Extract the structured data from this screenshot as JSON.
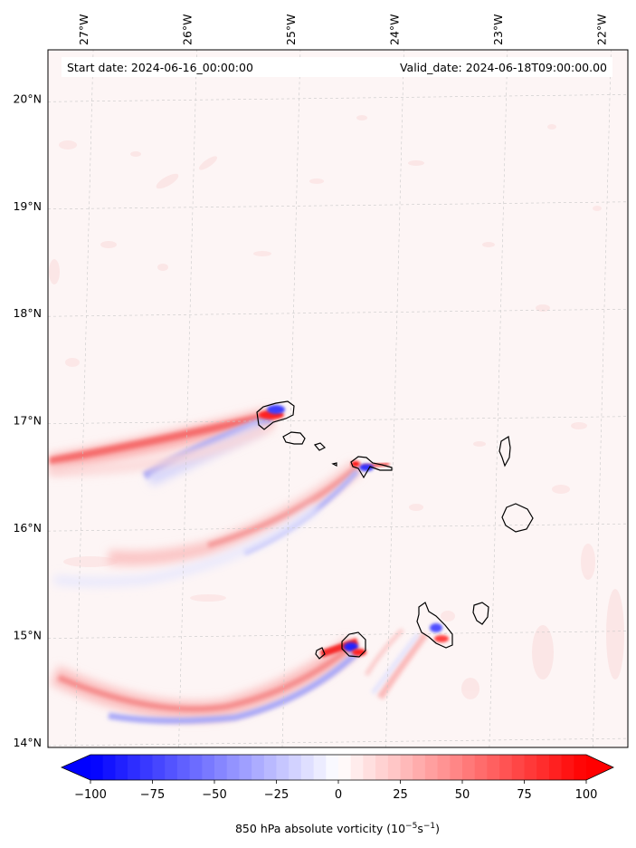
{
  "map": {
    "start_label": "Start date: 2024-06-16_00:00:00",
    "valid_label": "Valid_date: 2024-06-18T09:00:00.00",
    "lon_labels": [
      "27°W",
      "26°W",
      "25°W",
      "24°W",
      "23°W",
      "22°W"
    ],
    "lat_labels": [
      "20°N",
      "19°N",
      "18°N",
      "17°N",
      "16°N",
      "15°N",
      "14°N"
    ],
    "lon_range": [
      -27.35,
      -21.75
    ],
    "lat_range": [
      13.95,
      20.45
    ],
    "background_color": "#fdf5f5",
    "positive_color": "#ff0000",
    "negative_color": "#0000ff"
  },
  "colorbar": {
    "title_main": "850 hPa absolute vorticity (10",
    "title_exp1": "−5",
    "title_mid": "s",
    "title_exp2": "−1",
    "title_end": ")",
    "tick_labels": [
      "−100",
      "−75",
      "−50",
      "−25",
      "0",
      "25",
      "50",
      "75",
      "100"
    ],
    "tick_values": [
      -100,
      -75,
      -50,
      -25,
      0,
      25,
      50,
      75,
      100
    ],
    "vmin": -100,
    "vmax": 100,
    "levels": 40,
    "min_color": "#0000ff",
    "mid_color": "#ffffff",
    "max_color": "#ff0000"
  }
}
